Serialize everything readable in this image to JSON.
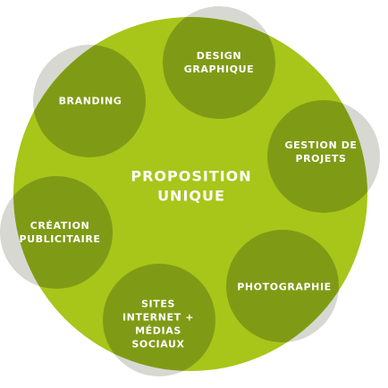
{
  "center": {
    "lines": [
      "PROPOSITION",
      "UNIQUE"
    ]
  },
  "nodes": [
    {
      "id": "design",
      "lines": [
        "DESIGN",
        "GRAPHIQUE"
      ]
    },
    {
      "id": "gestion",
      "lines": [
        "GESTION DE",
        "PROJETS"
      ]
    },
    {
      "id": "photographie",
      "lines": [
        "PHOTOGRAPHIE"
      ]
    },
    {
      "id": "sites",
      "lines": [
        "SITES",
        "INTERNET +",
        "MÉDIAS",
        "SOCIAUX"
      ]
    },
    {
      "id": "creation",
      "lines": [
        "CRÉATION",
        "PUBLICITAIRE"
      ]
    },
    {
      "id": "branding",
      "lines": [
        "BRANDING"
      ]
    }
  ],
  "colors": {
    "main_circle": "#a8c51a",
    "node_circle": "#7f9b16",
    "node_outer_grey": "#d7d8d2",
    "text": "#ffffff"
  }
}
